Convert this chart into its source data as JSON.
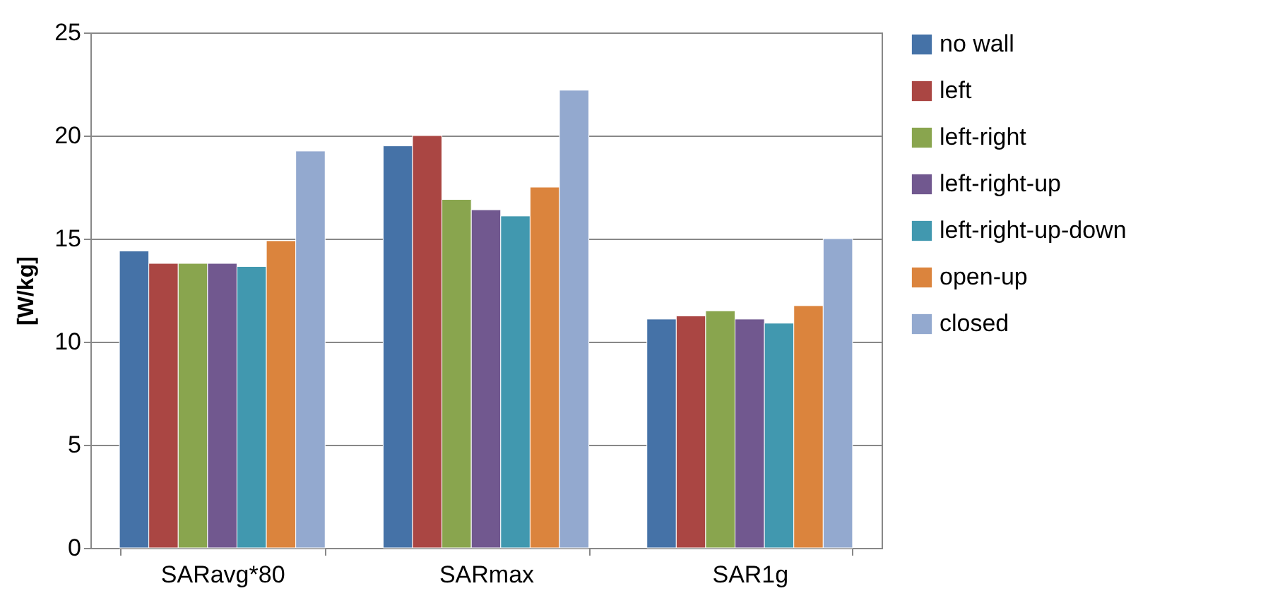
{
  "chart_data": {
    "type": "bar",
    "ylabel": "[W/kg]",
    "categories": [
      "SARavg*80",
      "SARmax",
      "SAR1g"
    ],
    "series": [
      {
        "name": "no wall",
        "color": "#4572a7",
        "values": [
          14.4,
          19.5,
          11.1
        ]
      },
      {
        "name": "left",
        "color": "#aa4643",
        "values": [
          13.8,
          20.0,
          11.25
        ]
      },
      {
        "name": "left-right",
        "color": "#89a54e",
        "values": [
          13.8,
          16.9,
          11.5
        ]
      },
      {
        "name": "left-right-up",
        "color": "#71588f",
        "values": [
          13.8,
          16.4,
          11.1
        ]
      },
      {
        "name": "left-right-up-down",
        "color": "#4198af",
        "values": [
          13.65,
          16.1,
          10.9
        ]
      },
      {
        "name": "open-up",
        "color": "#db843d",
        "values": [
          14.9,
          17.5,
          11.75
        ]
      },
      {
        "name": "closed",
        "color": "#93a9cf",
        "values": [
          19.25,
          22.2,
          15.0
        ]
      }
    ],
    "ylim": [
      0,
      25
    ],
    "yticks": [
      0,
      5,
      10,
      15,
      20,
      25
    ],
    "grid": "y",
    "legend": "right"
  }
}
